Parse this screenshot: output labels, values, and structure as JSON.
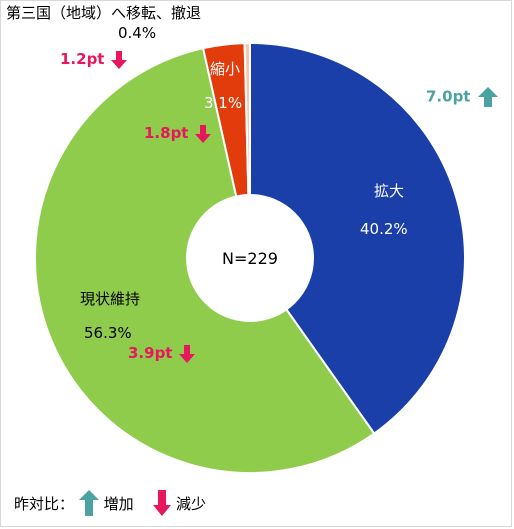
{
  "chart_data": {
    "type": "pie",
    "title": "第三国（地域）へ移転、撤退",
    "center_label": "N=229",
    "slices": [
      {
        "label": "拡大",
        "value": 40.2,
        "value_label": "40.2%",
        "color": "#1a3fa8",
        "change": "7.0pt",
        "direction": "up"
      },
      {
        "label": "現状維持",
        "value": 56.3,
        "value_label": "56.3%",
        "color": "#8fcc4c",
        "change": "3.9pt",
        "direction": "down"
      },
      {
        "label": "縮小",
        "value": 3.1,
        "value_label": "3.1%",
        "color": "#e23c0c",
        "change": "1.8pt",
        "direction": "down"
      },
      {
        "label": "",
        "value": 0.4,
        "value_label": "0.4%",
        "color": "#f7c8a8",
        "change": "1.2pt",
        "direction": "down"
      }
    ],
    "legend": {
      "prefix": "昨対比：",
      "up_label": "増加",
      "down_label": "減少",
      "up_color": "#4aa3a0",
      "down_color": "#e8175d"
    }
  }
}
